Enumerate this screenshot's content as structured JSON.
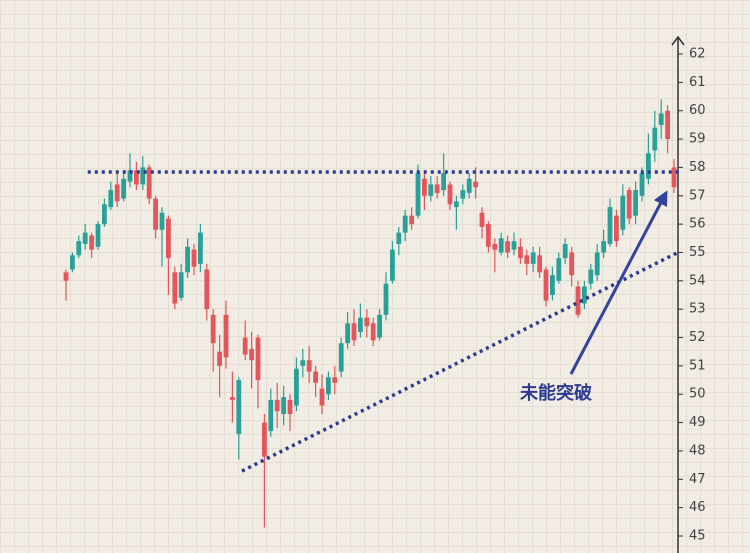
{
  "chart_data": {
    "type": "candlestick",
    "annotation": "未能突破",
    "up_color": "#2aa198",
    "down_color": "#e5565c",
    "line_color": "#2c3a8f",
    "axis_color": "#333333",
    "ylim": [
      44.4,
      62.6
    ],
    "yticks": [
      45,
      46,
      47,
      48,
      49,
      50,
      51,
      52,
      53,
      54,
      55,
      56,
      57,
      58,
      59,
      60,
      61,
      62
    ],
    "open": [
      54.3,
      54.4,
      54.9,
      55.3,
      55.6,
      55.2,
      56.0,
      56.6,
      57.4,
      56.9,
      57.5,
      57.9,
      57.4,
      58.0,
      56.9,
      55.8,
      56.2,
      54.3,
      53.4,
      54.3,
      55.1,
      54.6,
      54.4,
      52.8,
      51.5,
      52.8,
      49.9,
      48.6,
      52.0,
      51.6,
      52.0,
      49.0,
      48.7,
      49.8,
      49.3,
      49.8,
      49.6,
      51.0,
      51.2,
      50.8,
      50.2,
      50.0,
      50.6,
      50.8,
      51.8,
      52.5,
      52.2,
      52.7,
      52.5,
      52.0,
      52.8,
      54.0,
      55.3,
      55.7,
      56.3,
      56.3,
      57.6,
      57.0,
      57.4,
      57.2,
      57.4,
      56.6,
      56.9,
      57.1,
      57.5,
      56.4,
      56.0,
      55.3,
      55.0,
      55.4,
      55.1,
      55.2,
      54.9,
      54.6,
      54.9,
      54.4,
      53.5,
      54.0,
      54.8,
      55.0,
      53.8,
      53.2,
      53.9,
      54.2,
      55.0,
      55.3,
      56.3,
      55.8,
      57.2,
      56.3,
      57.0,
      57.6,
      58.6,
      59.5,
      60.0,
      58.0
    ],
    "high": [
      54.4,
      55.0,
      55.6,
      56.0,
      55.7,
      56.1,
      56.9,
      57.5,
      57.8,
      57.9,
      58.5,
      58.2,
      58.4,
      58.1,
      57.0,
      56.6,
      56.3,
      54.5,
      54.6,
      55.5,
      55.3,
      56.0,
      54.6,
      53.0,
      52.1,
      53.3,
      50.8,
      50.6,
      52.6,
      52.2,
      52.1,
      49.3,
      50.2,
      50.4,
      50.3,
      50.0,
      51.3,
      51.6,
      51.7,
      51.0,
      50.7,
      50.8,
      51.0,
      52.0,
      52.9,
      53.0,
      53.2,
      53.0,
      52.7,
      53.0,
      54.3,
      55.4,
      55.9,
      56.5,
      56.6,
      58.1,
      57.8,
      57.7,
      57.7,
      58.5,
      57.5,
      57.0,
      57.4,
      57.8,
      58.0,
      56.6,
      56.1,
      55.5,
      55.7,
      55.6,
      55.7,
      55.5,
      55.1,
      55.2,
      55.2,
      54.5,
      54.5,
      55.0,
      55.5,
      55.2,
      54.0,
      54.0,
      54.6,
      55.3,
      55.8,
      56.9,
      56.5,
      57.4,
      57.3,
      57.5,
      58.0,
      59.2,
      60.0,
      60.4,
      60.2,
      58.3
    ],
    "low": [
      53.3,
      54.3,
      54.8,
      55.1,
      54.8,
      55.1,
      55.9,
      56.5,
      56.6,
      56.8,
      57.3,
      57.2,
      57.2,
      56.7,
      55.5,
      54.5,
      53.5,
      53.0,
      53.3,
      54.1,
      54.2,
      54.3,
      52.6,
      50.8,
      49.9,
      50.9,
      49.0,
      47.7,
      51.2,
      50.2,
      49.5,
      45.3,
      48.5,
      48.8,
      48.9,
      48.7,
      49.4,
      50.6,
      50.4,
      49.9,
      49.3,
      49.8,
      50.0,
      50.6,
      51.6,
      51.7,
      52.0,
      52.0,
      51.7,
      51.9,
      52.6,
      53.9,
      54.9,
      55.4,
      55.8,
      56.2,
      56.5,
      56.8,
      56.9,
      57.0,
      56.5,
      55.8,
      56.7,
      56.9,
      56.9,
      55.5,
      55.0,
      54.3,
      54.9,
      54.8,
      54.9,
      54.6,
      54.2,
      54.3,
      54.1,
      53.1,
      53.3,
      53.9,
      54.6,
      53.8,
      52.7,
      53.0,
      53.7,
      54.0,
      54.8,
      55.2,
      55.2,
      55.6,
      56.0,
      56.0,
      56.8,
      57.4,
      58.2,
      59.0,
      58.5,
      57.1
    ],
    "close": [
      54.0,
      54.9,
      55.4,
      55.7,
      55.1,
      56.0,
      56.7,
      57.2,
      56.8,
      57.6,
      57.9,
      57.4,
      58.0,
      56.9,
      55.8,
      56.4,
      54.8,
      53.2,
      54.3,
      55.2,
      54.5,
      55.7,
      53.0,
      51.8,
      51.0,
      51.3,
      49.8,
      50.5,
      51.4,
      51.2,
      50.5,
      47.8,
      49.8,
      49.4,
      49.9,
      49.3,
      50.9,
      51.2,
      50.8,
      50.4,
      49.6,
      50.6,
      50.4,
      51.8,
      52.5,
      51.9,
      52.7,
      52.4,
      51.9,
      52.8,
      53.9,
      55.1,
      55.7,
      56.3,
      56.0,
      57.8,
      57.0,
      57.4,
      57.1,
      57.8,
      56.7,
      56.8,
      57.2,
      57.6,
      57.3,
      55.9,
      55.2,
      55.1,
      55.5,
      55.0,
      55.4,
      54.8,
      54.6,
      55.0,
      54.3,
      53.3,
      54.2,
      54.8,
      55.3,
      54.2,
      52.8,
      53.8,
      54.4,
      55.0,
      55.4,
      56.6,
      55.4,
      57.0,
      56.2,
      57.2,
      57.8,
      58.5,
      59.4,
      59.9,
      59.0,
      57.3
    ],
    "lines": [
      {
        "x": [
          3.4,
          95.9
        ],
        "values": [
          57.84,
          57.84
        ]
      },
      {
        "x": [
          27.5,
          95.6
        ],
        "values": [
          47.29,
          55.0
        ]
      }
    ]
  }
}
